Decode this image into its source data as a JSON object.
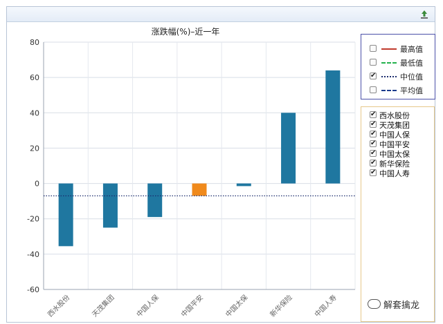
{
  "chart_data": {
    "type": "bar",
    "title": "涨跌幅(%)–近一年",
    "categories": [
      "西水股份",
      "天茂集团",
      "中国人保",
      "中国平安",
      "中国太保",
      "新华保险",
      "中国人寿"
    ],
    "values": [
      -35.5,
      -25,
      -19,
      -7,
      -1.5,
      40,
      64
    ],
    "bar_colors": [
      "#1f77a0",
      "#1f77a0",
      "#1f77a0",
      "#f08a1c",
      "#1f77a0",
      "#1f77a0",
      "#1f77a0"
    ],
    "highlight_category": "中国平安",
    "ylim": [
      -60,
      80
    ],
    "yticks": [
      80,
      60,
      40,
      20,
      0,
      -20,
      -40,
      -60
    ],
    "reference_lines": [
      {
        "name": "中位值",
        "value": -7,
        "style": "dotted",
        "color": "#1a2a6c",
        "visible": true
      }
    ],
    "grid": true,
    "xlabel": "",
    "ylabel": ""
  },
  "legend": {
    "items": [
      {
        "label": "最高值",
        "color": "#c0392b",
        "style": "solid",
        "checked": false,
        "mark": ""
      },
      {
        "label": "最低值",
        "color": "#22b14c",
        "style": "dashdot",
        "checked": false,
        "mark": ""
      },
      {
        "label": "中位值",
        "color": "#1a2a6c",
        "style": "dotted",
        "checked": true,
        "mark": "✔"
      },
      {
        "label": "平均值",
        "color": "#1a3a8c",
        "style": "dashed",
        "checked": false,
        "mark": ""
      }
    ]
  },
  "series_list": {
    "items": [
      {
        "label": "西水股份",
        "checked": true,
        "mark": "✔"
      },
      {
        "label": "天茂集团",
        "checked": true,
        "mark": "✔"
      },
      {
        "label": "中国人保",
        "checked": true,
        "mark": "✔"
      },
      {
        "label": "中国平安",
        "checked": true,
        "mark": "✔"
      },
      {
        "label": "中国太保",
        "checked": true,
        "mark": "✔"
      },
      {
        "label": "新华保险",
        "checked": true,
        "mark": "✔"
      },
      {
        "label": "中国人寿",
        "checked": true,
        "mark": "✔"
      }
    ]
  },
  "toolbar": {
    "export_icon": "export-icon",
    "export_color": "#3a8a3a"
  },
  "watermark": {
    "text": "解套擒龙"
  }
}
